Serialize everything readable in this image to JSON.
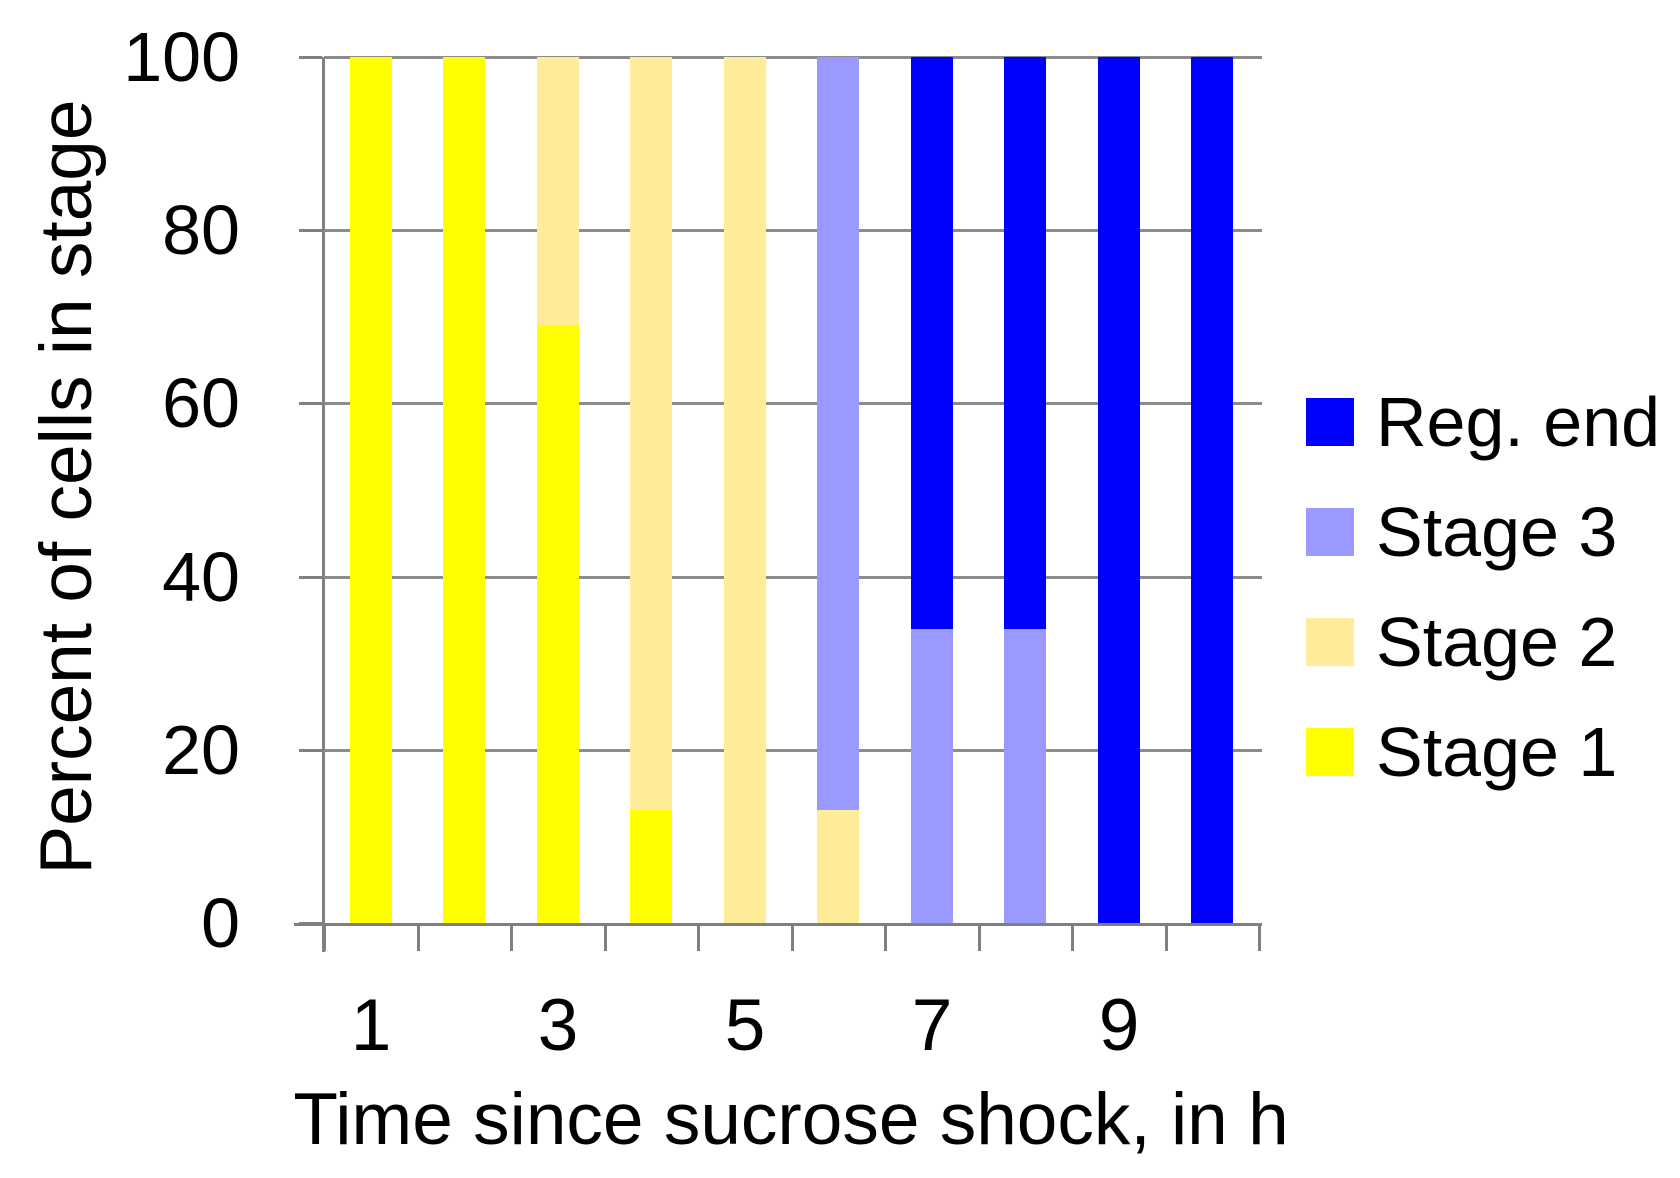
{
  "chart_data": {
    "type": "bar",
    "stacked": true,
    "orientation": "vertical",
    "title": "",
    "xlabel": "Time since sucrose shock, in h",
    "ylabel": "Percent of cells in stage",
    "categories": [
      1,
      2,
      3,
      4,
      5,
      6,
      7,
      8,
      9,
      10
    ],
    "ylim": [
      0,
      100
    ],
    "yticks": [
      0,
      20,
      40,
      60,
      80,
      100
    ],
    "ytick_labels": [
      "0",
      "20",
      "40",
      "60",
      "80",
      "100"
    ],
    "xticks_shown": [
      {
        "category_index": 0,
        "label": "1"
      },
      {
        "category_index": 2,
        "label": "3"
      },
      {
        "category_index": 4,
        "label": "5"
      },
      {
        "category_index": 6,
        "label": "7"
      },
      {
        "category_index": 8,
        "label": "9"
      }
    ],
    "grid": "horizontal-on",
    "series": [
      {
        "name": "Stage 1",
        "color": "#FFFF00",
        "values": [
          100,
          100,
          69,
          13,
          0,
          0,
          0,
          0,
          0,
          0
        ]
      },
      {
        "name": "Stage 2",
        "color": "#FFEC99",
        "values": [
          0,
          0,
          31,
          87,
          100,
          13,
          0,
          0,
          0,
          0
        ]
      },
      {
        "name": "Stage 3",
        "color": "#9999FF",
        "values": [
          0,
          0,
          0,
          0,
          0,
          87,
          34,
          34,
          0,
          0
        ]
      },
      {
        "name": "Reg. end",
        "color": "#0000FF",
        "values": [
          0,
          0,
          0,
          0,
          0,
          0,
          66,
          66,
          100,
          100
        ]
      }
    ],
    "legend": {
      "position": "right",
      "entries": [
        "Reg. end",
        "Stage 3",
        "Stage 2",
        "Stage 1"
      ]
    }
  },
  "colors": {
    "axis": "#7F7F7F",
    "gridline": "#8C8C8C",
    "text": "#000000",
    "background": "#FFFFFF"
  }
}
